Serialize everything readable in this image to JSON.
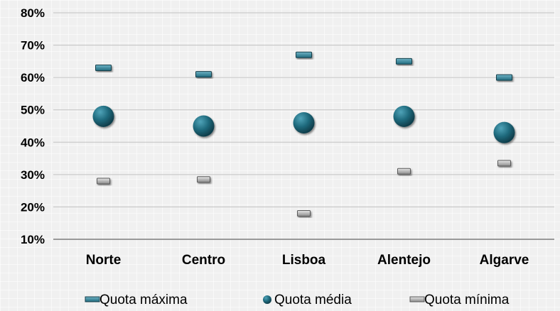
{
  "chart_data": {
    "type": "high-low",
    "categories": [
      "Norte",
      "Centro",
      "Lisboa",
      "Alentejo",
      "Algarve"
    ],
    "series": [
      {
        "name": "Quota máxima",
        "values": [
          63,
          61,
          67,
          65,
          60
        ],
        "marker": "dash",
        "color": "#2f7d93"
      },
      {
        "name": "Quota média",
        "values": [
          48,
          45,
          46,
          48,
          43
        ],
        "marker": "circle",
        "color": "#1f5f70"
      },
      {
        "name": "Quota mínima",
        "values": [
          28,
          28.5,
          18,
          31,
          33.5
        ],
        "marker": "dash",
        "color": "#b0b0b0"
      }
    ],
    "y_ticks": [
      "10%",
      "20%",
      "30%",
      "40%",
      "50%",
      "60%",
      "70%",
      "80%"
    ],
    "ylim": [
      10,
      80
    ],
    "grid": true,
    "legend_position": "bottom"
  }
}
